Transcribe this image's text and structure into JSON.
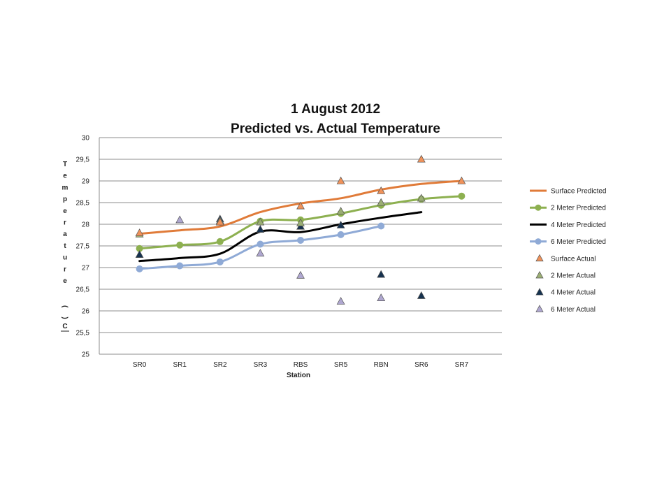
{
  "chart_data": {
    "type": "line",
    "title": [
      "1 August 2012",
      "Predicted vs. Actual Temperature"
    ],
    "xlabel": "Station",
    "ylabel": "Temperature (C)",
    "ylabel_chars": [
      "T",
      "e",
      "m",
      "p",
      "e",
      "r",
      "a",
      "t",
      "u",
      "r",
      "e",
      "(",
      "C",
      ")"
    ],
    "categories": [
      "SR0",
      "SR1",
      "SR2",
      "SR3",
      "RBS",
      "SR5",
      "RBN",
      "SR6",
      "SR7"
    ],
    "ylim": [
      25,
      30
    ],
    "yticks": [
      25,
      25.5,
      26,
      26.5,
      27,
      27.5,
      28,
      28.5,
      29,
      29.5,
      30
    ],
    "ytick_labels": [
      "25",
      "25,5",
      "26",
      "26,5",
      "27",
      "27,5",
      "28",
      "28,5",
      "29",
      "29,5",
      "30"
    ],
    "grid": true,
    "legend_position": "right",
    "series": [
      {
        "name": "Surface Predicted",
        "kind": "line",
        "color": "#E07B39",
        "marker": "none",
        "values": [
          27.78,
          27.86,
          27.95,
          28.28,
          28.48,
          28.6,
          28.8,
          28.93,
          29.0
        ]
      },
      {
        "name": "2 Meter Predicted",
        "kind": "line",
        "color": "#8DB050",
        "marker": "circle",
        "values": [
          27.44,
          27.52,
          27.6,
          28.07,
          28.1,
          28.25,
          28.44,
          28.58,
          28.65
        ]
      },
      {
        "name": "4 Meter Predicted",
        "kind": "line",
        "color": "#000000",
        "marker": "none",
        "values": [
          27.15,
          27.22,
          27.32,
          27.83,
          27.82,
          28.0,
          28.15,
          28.28,
          null
        ]
      },
      {
        "name": "6 Meter Predicted",
        "kind": "line",
        "color": "#8FAAD6",
        "marker": "circle",
        "values": [
          26.97,
          27.04,
          27.13,
          27.54,
          27.63,
          27.76,
          27.96,
          null,
          null
        ]
      },
      {
        "name": "Surface Actual",
        "kind": "marker",
        "color": "#F0925A",
        "marker": "triangle",
        "values": [
          27.8,
          null,
          28.05,
          null,
          28.42,
          29.0,
          28.77,
          29.5,
          29.0
        ]
      },
      {
        "name": "2 Meter Actual",
        "kind": "marker",
        "color": "#9BAE74",
        "marker": "triangle",
        "values": [
          27.77,
          null,
          28.08,
          28.05,
          28.03,
          28.3,
          28.5,
          28.6,
          null
        ]
      },
      {
        "name": "4 Meter Actual",
        "kind": "marker",
        "color": "#16324F",
        "marker": "triangle",
        "values": [
          27.3,
          null,
          28.12,
          27.88,
          27.95,
          27.98,
          26.84,
          26.35,
          null
        ]
      },
      {
        "name": "6 Meter Actual",
        "kind": "marker",
        "color": "#AFA7D0",
        "marker": "triangle",
        "values": [
          null,
          28.1,
          null,
          27.33,
          26.82,
          26.22,
          26.3,
          null,
          null
        ]
      }
    ]
  }
}
